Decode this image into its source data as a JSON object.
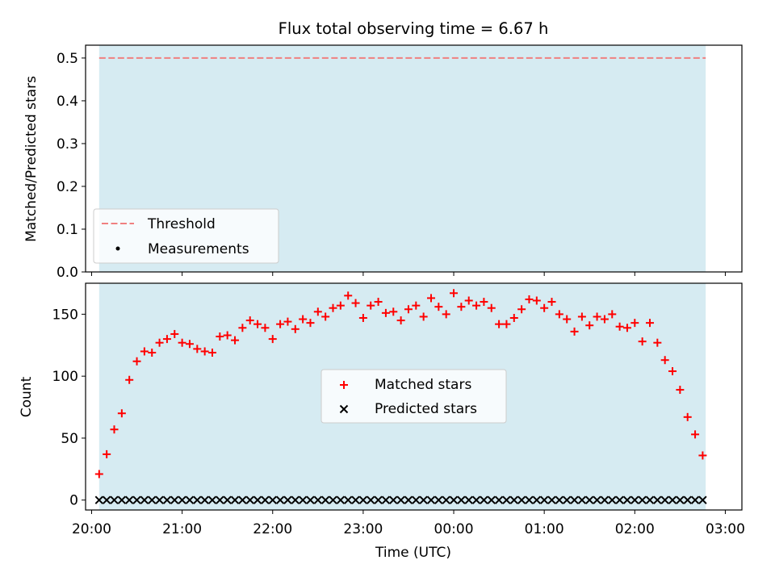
{
  "figure": {
    "title": "Flux total observing time = 6.67 h"
  },
  "colors": {
    "shade": "#add8e6",
    "threshold": "#f08080",
    "matched": "#ff0000",
    "predicted": "#000000"
  },
  "chart_data": [
    {
      "type": "line",
      "ylabel": "Matched/Predicted stars",
      "ylim": [
        0,
        0.53
      ],
      "yticks": [
        "0.0",
        "0.1",
        "0.2",
        "0.3",
        "0.4",
        "0.5"
      ],
      "ytick_values": [
        0,
        0.1,
        0.2,
        0.3,
        0.4,
        0.5
      ],
      "shaded_range": [
        "20:05",
        "02:47"
      ],
      "threshold": 0.5,
      "legend": {
        "placement": "lower-left",
        "entries": [
          "Threshold",
          "Measurements"
        ]
      },
      "series": []
    },
    {
      "type": "scatter",
      "xlabel": "Time (UTC)",
      "ylabel": "Count",
      "ylim": [
        -8,
        175
      ],
      "yticks": [
        "0",
        "50",
        "100",
        "150"
      ],
      "ytick_values": [
        0,
        50,
        100,
        150
      ],
      "xticks": [
        "20:00",
        "21:00",
        "22:00",
        "23:00",
        "00:00",
        "01:00",
        "02:00",
        "03:00"
      ],
      "xlim": [
        "19:56",
        "03:11"
      ],
      "shaded_range": [
        "20:05",
        "02:47"
      ],
      "legend": {
        "placement": "center",
        "entries": [
          "Matched stars",
          "Predicted stars"
        ]
      },
      "series": [
        {
          "name": "Matched stars",
          "marker": "+",
          "start": "20:05",
          "interval_minutes": 5,
          "values": [
            21,
            37,
            57,
            70,
            97,
            112,
            120,
            119,
            127,
            130,
            134,
            127,
            126,
            122,
            120,
            119,
            132,
            133,
            129,
            139,
            145,
            142,
            139,
            130,
            142,
            144,
            138,
            146,
            143,
            152,
            148,
            155,
            157,
            165,
            159,
            147,
            157,
            160,
            151,
            152,
            145,
            154,
            157,
            148,
            163,
            156,
            150,
            167,
            156,
            161,
            157,
            160,
            155,
            142,
            142,
            147,
            154,
            162,
            161,
            155,
            160,
            150,
            146,
            136,
            148,
            141,
            148,
            146,
            150,
            140,
            139,
            143,
            128,
            143,
            127,
            113,
            104,
            89,
            67,
            53,
            36
          ]
        },
        {
          "name": "Predicted stars",
          "marker": "x",
          "start": "20:05",
          "interval_minutes": 5,
          "values": [
            0,
            0,
            0,
            0,
            0,
            0,
            0,
            0,
            0,
            0,
            0,
            0,
            0,
            0,
            0,
            0,
            0,
            0,
            0,
            0,
            0,
            0,
            0,
            0,
            0,
            0,
            0,
            0,
            0,
            0,
            0,
            0,
            0,
            0,
            0,
            0,
            0,
            0,
            0,
            0,
            0,
            0,
            0,
            0,
            0,
            0,
            0,
            0,
            0,
            0,
            0,
            0,
            0,
            0,
            0,
            0,
            0,
            0,
            0,
            0,
            0,
            0,
            0,
            0,
            0,
            0,
            0,
            0,
            0,
            0,
            0,
            0,
            0,
            0,
            0,
            0,
            0,
            0,
            0,
            0,
            0
          ]
        }
      ]
    }
  ]
}
